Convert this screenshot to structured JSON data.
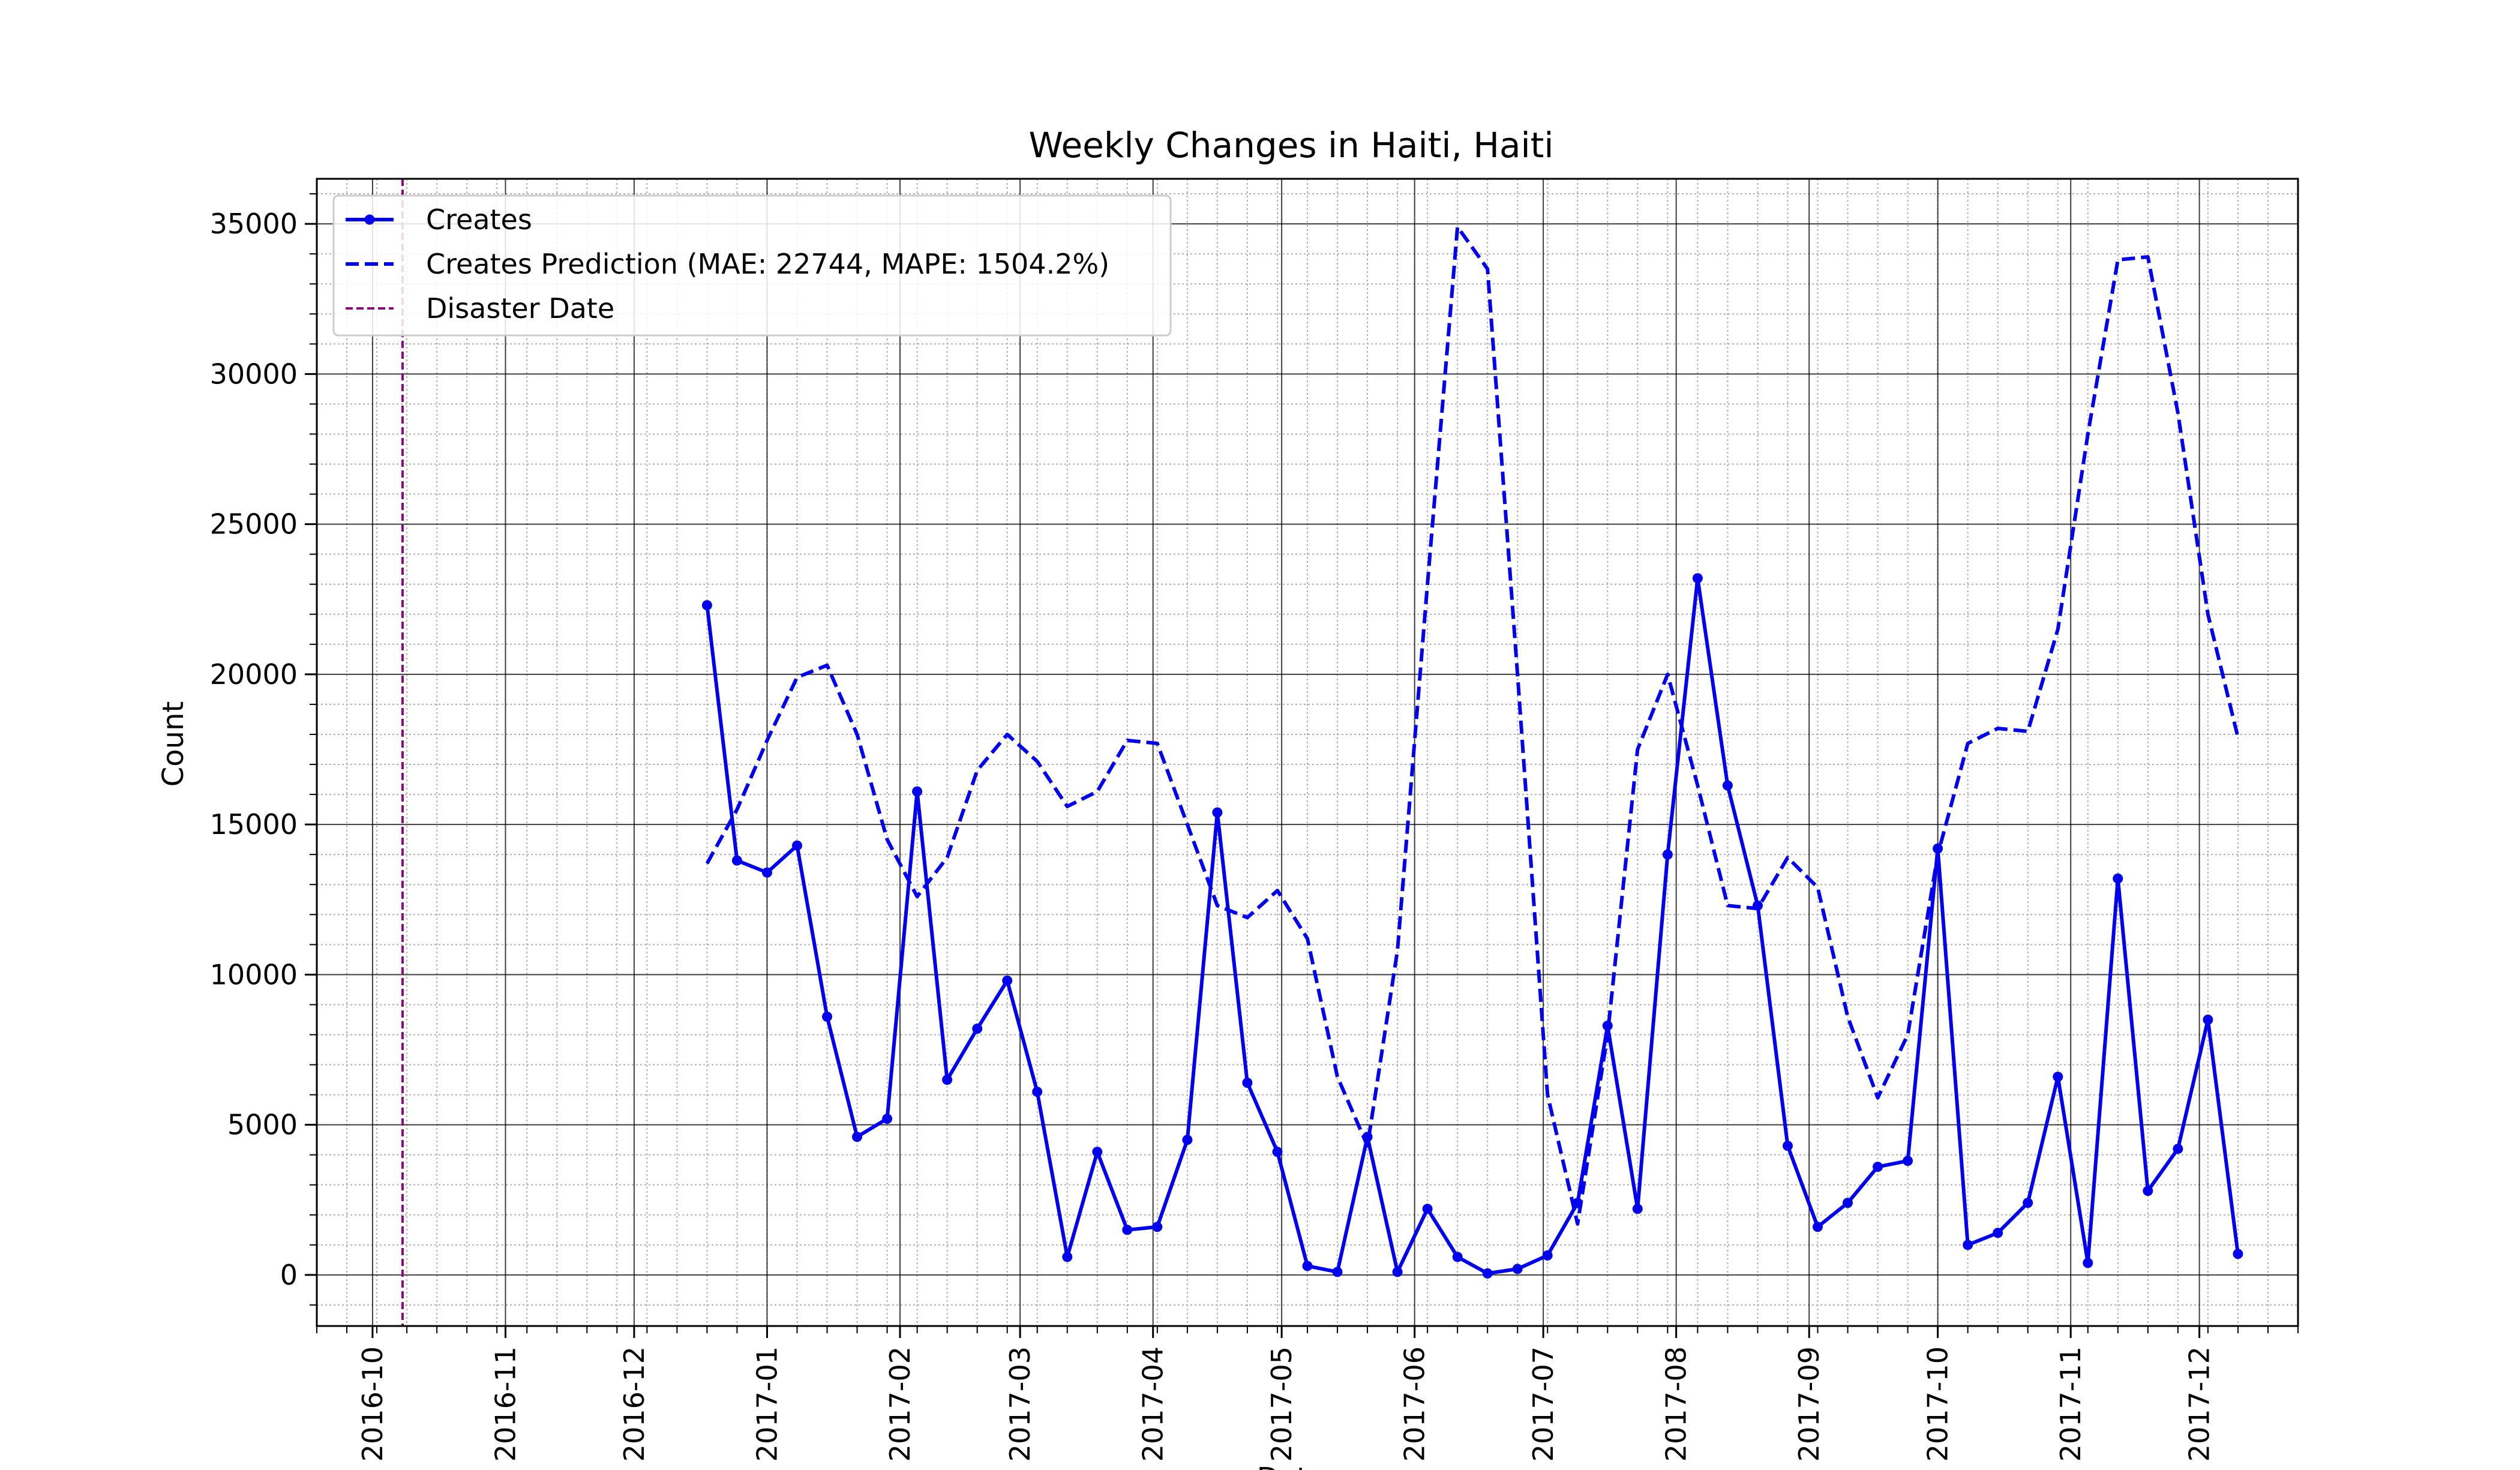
{
  "chart_data": {
    "type": "line",
    "title": "Weekly Changes in Haiti, Haiti",
    "xlabel": "Date",
    "ylabel": "Count",
    "x_axis_type": "date",
    "xlim": [
      "2016-09-18",
      "2017-12-24"
    ],
    "ylim": [
      -1700,
      36500
    ],
    "x_ticks": [
      "2016-10",
      "2016-11",
      "2016-12",
      "2017-01",
      "2017-02",
      "2017-03",
      "2017-04",
      "2017-05",
      "2017-06",
      "2017-07",
      "2017-08",
      "2017-09",
      "2017-10",
      "2017-11",
      "2017-12"
    ],
    "y_ticks": [
      0,
      5000,
      10000,
      15000,
      20000,
      25000,
      30000,
      35000
    ],
    "grid": {
      "major": true,
      "minor": true
    },
    "legend_position": "top-left",
    "disaster_date": "2016-10-08",
    "series": [
      {
        "name": "Creates",
        "style": "solid-with-markers",
        "color": "#0000ee",
        "x": [
          "2016-12-18",
          "2016-12-25",
          "2017-01-01",
          "2017-01-08",
          "2017-01-15",
          "2017-01-22",
          "2017-01-29",
          "2017-02-05",
          "2017-02-12",
          "2017-02-19",
          "2017-02-26",
          "2017-03-05",
          "2017-03-12",
          "2017-03-19",
          "2017-03-26",
          "2017-04-02",
          "2017-04-09",
          "2017-04-16",
          "2017-04-23",
          "2017-04-30",
          "2017-05-07",
          "2017-05-14",
          "2017-05-21",
          "2017-05-28",
          "2017-06-04",
          "2017-06-11",
          "2017-06-18",
          "2017-06-25",
          "2017-07-02",
          "2017-07-09",
          "2017-07-16",
          "2017-07-23",
          "2017-07-30",
          "2017-08-06",
          "2017-08-13",
          "2017-08-20",
          "2017-08-27",
          "2017-09-03",
          "2017-09-10",
          "2017-09-17",
          "2017-09-24",
          "2017-10-01",
          "2017-10-08",
          "2017-10-15",
          "2017-10-22",
          "2017-10-29",
          "2017-11-05",
          "2017-11-12",
          "2017-11-19",
          "2017-11-26",
          "2017-12-03",
          "2017-12-10"
        ],
        "values": [
          22300,
          13800,
          13400,
          14300,
          8600,
          4600,
          5200,
          16100,
          6500,
          8200,
          9800,
          6100,
          600,
          4100,
          1500,
          1600,
          4500,
          15400,
          6400,
          4100,
          300,
          100,
          4600,
          100,
          2200,
          600,
          50,
          200,
          650,
          2400,
          8300,
          2200,
          14000,
          23200,
          16300,
          12300,
          4300,
          1600,
          2400,
          3600,
          3800,
          14200,
          1000,
          1400,
          2400,
          6600,
          400,
          13200,
          2800,
          4200,
          8500,
          700
        ]
      },
      {
        "name": "Creates Prediction (MAE: 22744, MAPE: 1504.2%)",
        "style": "dashed",
        "color": "#0000ee",
        "x": [
          "2016-12-18",
          "2016-12-25",
          "2017-01-01",
          "2017-01-08",
          "2017-01-15",
          "2017-01-22",
          "2017-01-29",
          "2017-02-05",
          "2017-02-12",
          "2017-02-19",
          "2017-02-26",
          "2017-03-05",
          "2017-03-12",
          "2017-03-19",
          "2017-03-26",
          "2017-04-02",
          "2017-04-09",
          "2017-04-16",
          "2017-04-23",
          "2017-04-30",
          "2017-05-07",
          "2017-05-14",
          "2017-05-21",
          "2017-05-28",
          "2017-06-04",
          "2017-06-11",
          "2017-06-18",
          "2017-06-25",
          "2017-07-02",
          "2017-07-09",
          "2017-07-16",
          "2017-07-23",
          "2017-07-30",
          "2017-08-06",
          "2017-08-13",
          "2017-08-20",
          "2017-08-27",
          "2017-09-03",
          "2017-09-10",
          "2017-09-17",
          "2017-09-24",
          "2017-10-01",
          "2017-10-08",
          "2017-10-15",
          "2017-10-22",
          "2017-10-29",
          "2017-11-05",
          "2017-11-12",
          "2017-11-19",
          "2017-11-26",
          "2017-12-03",
          "2017-12-10"
        ],
        "values": [
          13700,
          15500,
          17800,
          19900,
          20300,
          18000,
          14500,
          12600,
          13900,
          16800,
          18000,
          17100,
          15600,
          16100,
          17800,
          17700,
          15000,
          12300,
          11900,
          12800,
          11200,
          6600,
          4300,
          10800,
          23000,
          34900,
          33500,
          20000,
          6000,
          1700,
          8000,
          17500,
          20000,
          16300,
          12300,
          12200,
          13900,
          12900,
          8600,
          5900,
          8000,
          14000,
          17700,
          18200,
          18100,
          21500,
          28000,
          33800,
          33900,
          28700,
          22000,
          17900
        ]
      }
    ]
  },
  "legend": [
    {
      "label": "Creates",
      "style": "solid-with-markers",
      "color": "#0000ee"
    },
    {
      "label": "Creates Prediction (MAE: 22744, MAPE: 1504.2%)",
      "style": "dashed",
      "color": "#0000ee"
    },
    {
      "label": "Disaster Date",
      "style": "dashed",
      "color": "#8b0a7a"
    }
  ]
}
